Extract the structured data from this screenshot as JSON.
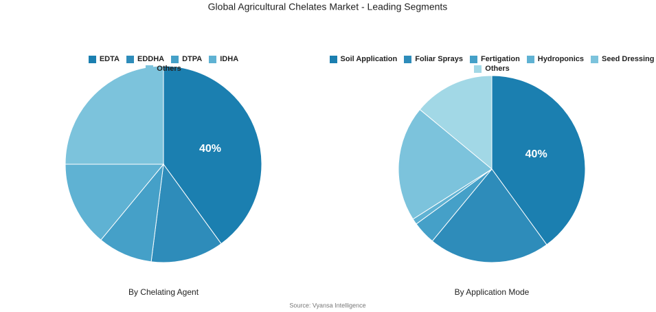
{
  "title": "Global Agricultural Chelates Market - Leading Segments",
  "source": "Source: Vyansa Intelligence",
  "chart_data": [
    {
      "type": "pie",
      "title": "By Chelating Agent",
      "categories": [
        "EDTA",
        "EDDHA",
        "DTPA",
        "IDHA",
        "Others"
      ],
      "values": [
        40,
        12,
        9,
        14,
        25
      ],
      "value_labels": [
        "40%",
        null,
        null,
        null,
        null
      ],
      "colors": [
        "#1b7fb0",
        "#2e8cba",
        "#45a0c8",
        "#5fb2d3",
        "#7cc3dc"
      ]
    },
    {
      "type": "pie",
      "title": "By Application Mode",
      "categories": [
        "Soil Application",
        "Foliar Sprays",
        "Fertigation",
        "Hydroponics",
        "Seed Dressing",
        "Others"
      ],
      "values": [
        40,
        21,
        4,
        1,
        20,
        14
      ],
      "value_labels": [
        "40%",
        null,
        null,
        null,
        null,
        null
      ],
      "colors": [
        "#1b7fb0",
        "#2e8cba",
        "#45a0c8",
        "#5fb2d3",
        "#7cc3dc",
        "#a2d8e6"
      ]
    }
  ]
}
